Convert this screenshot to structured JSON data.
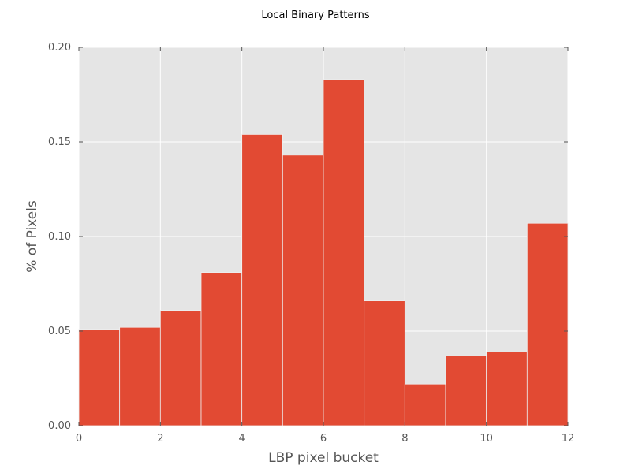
{
  "chart_data": {
    "type": "bar",
    "title": "Local Binary Patterns",
    "xlabel": "LBP pixel bucket",
    "ylabel": "% of Pixels",
    "bin_edges": [
      0,
      1,
      2,
      3,
      4,
      5,
      6,
      7,
      8,
      9,
      10,
      11,
      12
    ],
    "values": [
      0.051,
      0.052,
      0.061,
      0.081,
      0.154,
      0.143,
      0.183,
      0.066,
      0.022,
      0.037,
      0.039,
      0.107
    ],
    "xlim": [
      0,
      12
    ],
    "ylim": [
      0,
      0.2
    ],
    "xticks": [
      0,
      2,
      4,
      6,
      8,
      10,
      12
    ],
    "xtick_labels": [
      "0",
      "2",
      "4",
      "6",
      "8",
      "10",
      "12"
    ],
    "yticks": [
      0,
      0.05,
      0.1,
      0.15,
      0.2
    ],
    "ytick_labels": [
      "0.00",
      "0.05",
      "0.10",
      "0.15",
      "0.20"
    ],
    "grid": true,
    "colors": {
      "bar": "#e24a33",
      "plot_background": "#e5e5e5",
      "grid": "#ffffff",
      "bar_edge": "#eeeeee"
    }
  }
}
